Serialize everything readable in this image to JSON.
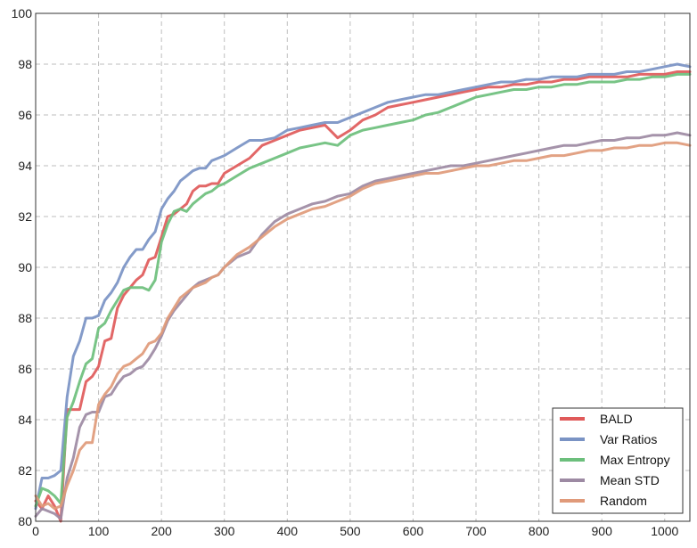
{
  "chart_data": {
    "type": "line",
    "title": "",
    "xlabel": "",
    "ylabel": "",
    "xlim": [
      0,
      1040
    ],
    "ylim": [
      80,
      100
    ],
    "x_ticks": [
      "0",
      "100",
      "200",
      "300",
      "400",
      "500",
      "600",
      "700",
      "800",
      "900",
      "1000"
    ],
    "x_tick_values": [
      0,
      100,
      200,
      300,
      400,
      500,
      600,
      700,
      800,
      900,
      1000
    ],
    "y_ticks": [
      "80",
      "82",
      "84",
      "86",
      "88",
      "90",
      "92",
      "94",
      "96",
      "98",
      "100"
    ],
    "y_tick_values": [
      80,
      82,
      84,
      86,
      88,
      90,
      92,
      94,
      96,
      98,
      100
    ],
    "grid": true,
    "legend_position": "bottom-right",
    "series": [
      {
        "name": "BALD",
        "color": "#e05a5a",
        "x": [
          0,
          10,
          20,
          30,
          40,
          50,
          60,
          70,
          80,
          90,
          100,
          110,
          120,
          130,
          140,
          150,
          160,
          170,
          180,
          190,
          200,
          210,
          220,
          230,
          240,
          250,
          260,
          270,
          280,
          290,
          300,
          320,
          340,
          360,
          380,
          400,
          420,
          440,
          460,
          480,
          500,
          520,
          540,
          560,
          580,
          600,
          620,
          640,
          660,
          680,
          700,
          720,
          740,
          760,
          780,
          800,
          820,
          840,
          860,
          880,
          900,
          920,
          940,
          960,
          980,
          1000,
          1020,
          1040
        ],
        "y": [
          80.8,
          80.5,
          81.0,
          80.6,
          79.8,
          84.4,
          84.4,
          84.4,
          85.5,
          85.7,
          86.1,
          87.1,
          87.2,
          88.4,
          88.9,
          89.2,
          89.5,
          89.7,
          90.3,
          90.4,
          91.2,
          92.0,
          92.1,
          92.3,
          92.5,
          93.0,
          93.2,
          93.2,
          93.3,
          93.3,
          93.7,
          94.0,
          94.3,
          94.8,
          95.0,
          95.2,
          95.4,
          95.5,
          95.6,
          95.1,
          95.4,
          95.8,
          96.0,
          96.3,
          96.4,
          96.5,
          96.6,
          96.7,
          96.8,
          96.9,
          97.0,
          97.1,
          97.1,
          97.2,
          97.2,
          97.3,
          97.3,
          97.4,
          97.4,
          97.5,
          97.5,
          97.5,
          97.5,
          97.6,
          97.6,
          97.6,
          97.7,
          97.7
        ]
      },
      {
        "name": "Var Ratios",
        "color": "#7a93c4",
        "x": [
          0,
          10,
          20,
          30,
          40,
          50,
          60,
          70,
          80,
          90,
          100,
          110,
          120,
          130,
          140,
          150,
          160,
          170,
          180,
          190,
          200,
          210,
          220,
          230,
          240,
          250,
          260,
          270,
          280,
          290,
          300,
          320,
          340,
          360,
          380,
          400,
          420,
          440,
          460,
          480,
          500,
          520,
          540,
          560,
          580,
          600,
          620,
          640,
          660,
          680,
          700,
          720,
          740,
          760,
          780,
          800,
          820,
          840,
          860,
          880,
          900,
          920,
          940,
          960,
          980,
          1000,
          1020,
          1040
        ],
        "y": [
          80.5,
          81.7,
          81.7,
          81.8,
          82.0,
          84.9,
          86.5,
          87.1,
          88.0,
          88.0,
          88.1,
          88.7,
          89.0,
          89.4,
          90.0,
          90.4,
          90.7,
          90.7,
          91.1,
          91.4,
          92.3,
          92.7,
          93.0,
          93.4,
          93.6,
          93.8,
          93.9,
          93.9,
          94.2,
          94.3,
          94.4,
          94.7,
          95.0,
          95.0,
          95.1,
          95.4,
          95.5,
          95.6,
          95.7,
          95.7,
          95.9,
          96.1,
          96.3,
          96.5,
          96.6,
          96.7,
          96.8,
          96.8,
          96.9,
          97.0,
          97.1,
          97.2,
          97.3,
          97.3,
          97.4,
          97.4,
          97.5,
          97.5,
          97.5,
          97.6,
          97.6,
          97.6,
          97.7,
          97.7,
          97.8,
          97.9,
          98.0,
          97.9
        ]
      },
      {
        "name": "Max Entropy",
        "color": "#6cbf7c",
        "x": [
          0,
          10,
          20,
          30,
          40,
          50,
          60,
          70,
          80,
          90,
          100,
          110,
          120,
          130,
          140,
          150,
          160,
          170,
          180,
          190,
          200,
          210,
          220,
          230,
          240,
          250,
          260,
          270,
          280,
          290,
          300,
          320,
          340,
          360,
          380,
          400,
          420,
          440,
          460,
          480,
          500,
          520,
          540,
          560,
          580,
          600,
          620,
          640,
          660,
          680,
          700,
          720,
          740,
          760,
          780,
          800,
          820,
          840,
          860,
          880,
          900,
          920,
          940,
          960,
          980,
          1000,
          1020,
          1040
        ],
        "y": [
          80.6,
          81.3,
          81.2,
          81.0,
          80.7,
          84.1,
          84.7,
          85.5,
          86.2,
          86.4,
          87.6,
          87.8,
          88.3,
          88.7,
          89.1,
          89.2,
          89.2,
          89.2,
          89.1,
          89.5,
          91.0,
          91.7,
          92.2,
          92.3,
          92.2,
          92.5,
          92.7,
          92.9,
          93.0,
          93.2,
          93.3,
          93.6,
          93.9,
          94.1,
          94.3,
          94.5,
          94.7,
          94.8,
          94.9,
          94.8,
          95.2,
          95.4,
          95.5,
          95.6,
          95.7,
          95.8,
          96.0,
          96.1,
          96.3,
          96.5,
          96.7,
          96.8,
          96.9,
          97.0,
          97.0,
          97.1,
          97.1,
          97.2,
          97.2,
          97.3,
          97.3,
          97.3,
          97.4,
          97.4,
          97.5,
          97.5,
          97.6,
          97.6
        ]
      },
      {
        "name": "Mean STD",
        "color": "#9d8aa3",
        "x": [
          0,
          10,
          20,
          30,
          40,
          50,
          60,
          70,
          80,
          90,
          100,
          110,
          120,
          130,
          140,
          150,
          160,
          170,
          180,
          190,
          200,
          210,
          220,
          230,
          240,
          250,
          260,
          270,
          280,
          290,
          300,
          320,
          340,
          360,
          380,
          400,
          420,
          440,
          460,
          480,
          500,
          520,
          540,
          560,
          580,
          600,
          620,
          640,
          660,
          680,
          700,
          720,
          740,
          760,
          780,
          800,
          820,
          840,
          860,
          880,
          900,
          920,
          940,
          960,
          980,
          1000,
          1020,
          1040
        ],
        "y": [
          80.2,
          80.5,
          80.4,
          80.3,
          80.1,
          81.7,
          82.5,
          83.7,
          84.2,
          84.3,
          84.3,
          84.9,
          85.0,
          85.4,
          85.7,
          85.8,
          86.0,
          86.1,
          86.4,
          86.8,
          87.3,
          87.9,
          88.3,
          88.6,
          88.9,
          89.2,
          89.4,
          89.5,
          89.6,
          89.7,
          90.0,
          90.4,
          90.6,
          91.3,
          91.8,
          92.1,
          92.3,
          92.5,
          92.6,
          92.8,
          92.9,
          93.2,
          93.4,
          93.5,
          93.6,
          93.7,
          93.8,
          93.9,
          94.0,
          94.0,
          94.1,
          94.2,
          94.3,
          94.4,
          94.5,
          94.6,
          94.7,
          94.8,
          94.8,
          94.9,
          95.0,
          95.0,
          95.1,
          95.1,
          95.2,
          95.2,
          95.3,
          95.2
        ]
      },
      {
        "name": "Random",
        "color": "#e09a7a",
        "x": [
          0,
          10,
          20,
          30,
          40,
          50,
          60,
          70,
          80,
          90,
          100,
          110,
          120,
          130,
          140,
          150,
          160,
          170,
          180,
          190,
          200,
          210,
          220,
          230,
          240,
          250,
          260,
          270,
          280,
          290,
          300,
          320,
          340,
          360,
          380,
          400,
          420,
          440,
          460,
          480,
          500,
          520,
          540,
          560,
          580,
          600,
          620,
          640,
          660,
          680,
          700,
          720,
          740,
          760,
          780,
          800,
          820,
          840,
          860,
          880,
          900,
          920,
          940,
          960,
          980,
          1000,
          1020,
          1040
        ],
        "y": [
          81.0,
          80.6,
          80.7,
          80.5,
          80.6,
          81.4,
          82.0,
          82.8,
          83.1,
          83.1,
          84.6,
          85.0,
          85.3,
          85.8,
          86.1,
          86.2,
          86.4,
          86.6,
          87.0,
          87.1,
          87.4,
          88.0,
          88.4,
          88.8,
          89.0,
          89.2,
          89.3,
          89.4,
          89.6,
          89.7,
          90.0,
          90.5,
          90.8,
          91.2,
          91.6,
          91.9,
          92.1,
          92.3,
          92.4,
          92.6,
          92.8,
          93.1,
          93.3,
          93.4,
          93.5,
          93.6,
          93.7,
          93.7,
          93.8,
          93.9,
          94.0,
          94.0,
          94.1,
          94.2,
          94.2,
          94.3,
          94.4,
          94.4,
          94.5,
          94.6,
          94.6,
          94.7,
          94.7,
          94.8,
          94.8,
          94.9,
          94.9,
          94.8
        ]
      }
    ]
  }
}
